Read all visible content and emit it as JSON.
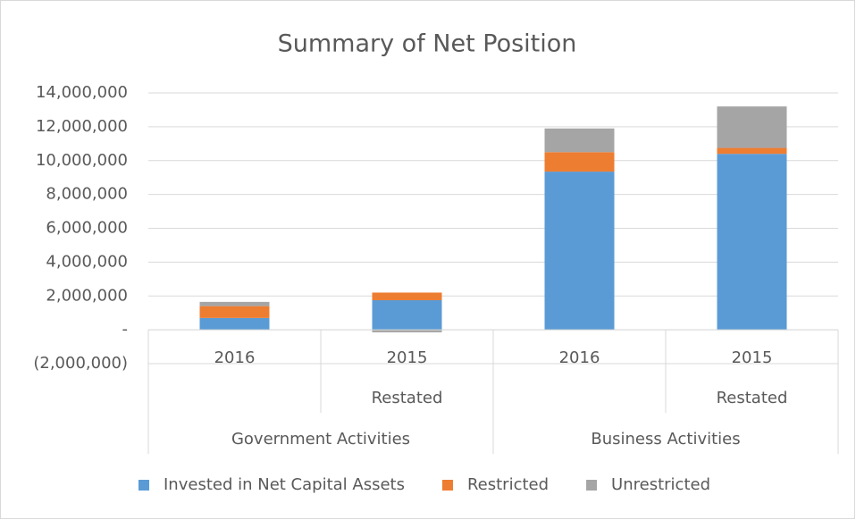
{
  "chart_data": {
    "type": "stacked_bar",
    "title": "Summary of Net Position",
    "categories": [
      "2016",
      "2015",
      "2016",
      "2015"
    ],
    "sublabels": [
      null,
      "Restated",
      null,
      "Restated"
    ],
    "groups": [
      {
        "name": "Government Activities",
        "span": 2
      },
      {
        "name": "Business Activities",
        "span": 2
      }
    ],
    "series": [
      {
        "name": "Invested in Net Capital Assets",
        "color": "#5b9bd5",
        "values": [
          700000,
          1750000,
          9350000,
          10400000
        ]
      },
      {
        "name": "Restricted",
        "color": "#ed7d31",
        "values": [
          700000,
          450000,
          1150000,
          350000
        ]
      },
      {
        "name": "Unrestricted",
        "color": "#a5a5a5",
        "values": [
          250000,
          -150000,
          1400000,
          2450000
        ]
      }
    ],
    "ylim": [
      -2000000,
      14000000
    ],
    "yticks": [
      {
        "value": -2000000,
        "label": "(2,000,000)"
      },
      {
        "value": 0,
        "label": "-"
      },
      {
        "value": 2000000,
        "label": "2,000,000"
      },
      {
        "value": 4000000,
        "label": "4,000,000"
      },
      {
        "value": 6000000,
        "label": "6,000,000"
      },
      {
        "value": 8000000,
        "label": "8,000,000"
      },
      {
        "value": 10000000,
        "label": "10,000,000"
      },
      {
        "value": 12000000,
        "label": "12,000,000"
      },
      {
        "value": 14000000,
        "label": "14,000,000"
      }
    ],
    "grid": true,
    "legend": "bottom"
  }
}
